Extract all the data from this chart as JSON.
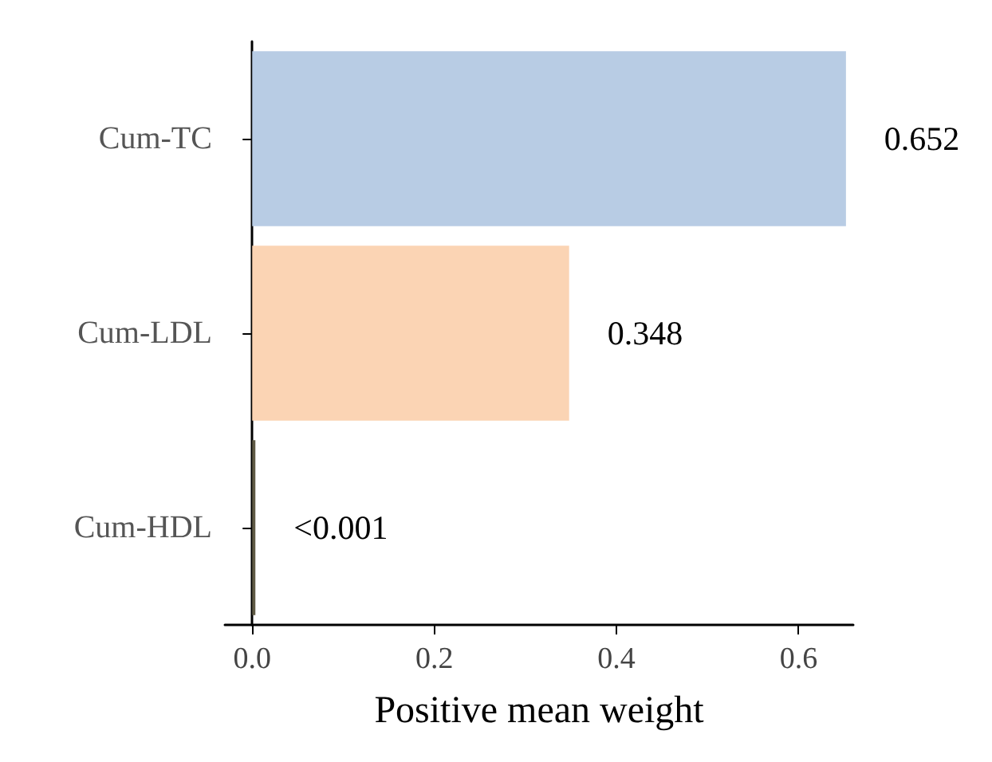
{
  "chart_data": {
    "type": "bar",
    "orientation": "horizontal",
    "xlabel": "Positive mean weight",
    "categories": [
      "Cum-TC",
      "Cum-LDL",
      "Cum-HDL"
    ],
    "values": [
      0.652,
      0.348,
      0.001
    ],
    "colors": [
      "#b8cce4",
      "#fbd4b4",
      "#5f5a45"
    ],
    "value_labels": [
      "0.652",
      "0.348",
      "<0.001"
    ],
    "xlim": [
      -0.03,
      0.66
    ],
    "xticks": [
      {
        "value": 0,
        "label": "0.0"
      },
      {
        "value": 0.2,
        "label": "0.2"
      },
      {
        "value": 0.4,
        "label": "0.4"
      },
      {
        "value": 0.6,
        "label": "0.6"
      }
    ],
    "grid": false
  }
}
